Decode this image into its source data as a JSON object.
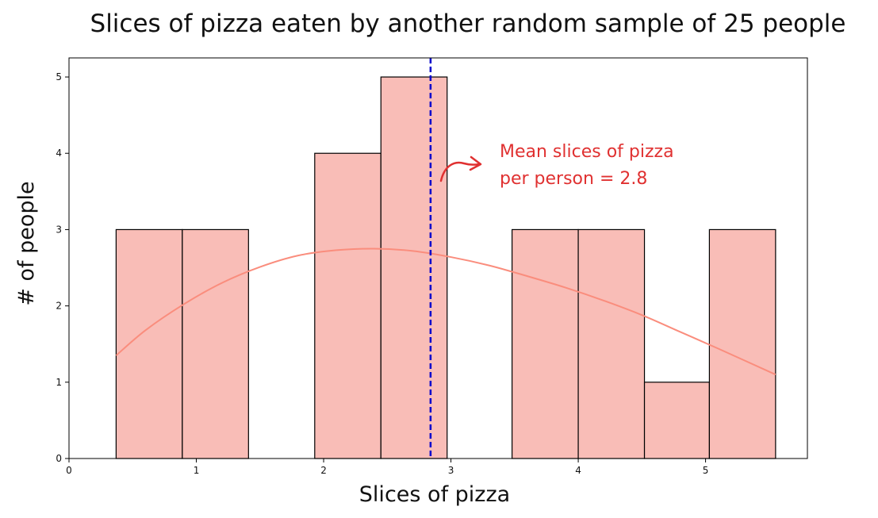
{
  "chart_data": {
    "type": "bar",
    "title": "Slices of pizza eaten by another random sample of 25 people",
    "xlabel": "Slices of pizza",
    "ylabel": "# of people",
    "xlim": [
      0,
      5.8
    ],
    "ylim": [
      0,
      5.25
    ],
    "x_ticks": [
      0,
      1,
      2,
      3,
      4,
      5
    ],
    "y_ticks": [
      0,
      1,
      2,
      3,
      4,
      5
    ],
    "bins": [
      {
        "x0": 0.37,
        "x1": 0.89,
        "count": 3
      },
      {
        "x0": 0.89,
        "x1": 1.41,
        "count": 3
      },
      {
        "x0": 1.41,
        "x1": 1.93,
        "count": 0
      },
      {
        "x0": 1.93,
        "x1": 2.45,
        "count": 4
      },
      {
        "x0": 2.45,
        "x1": 2.97,
        "count": 5
      },
      {
        "x0": 2.97,
        "x1": 3.48,
        "count": 0
      },
      {
        "x0": 3.48,
        "x1": 4.0,
        "count": 3
      },
      {
        "x0": 4.0,
        "x1": 4.52,
        "count": 3
      },
      {
        "x0": 4.52,
        "x1": 5.03,
        "count": 1
      },
      {
        "x0": 5.03,
        "x1": 5.55,
        "count": 3
      }
    ],
    "kde_curve": {
      "x": [
        0.37,
        0.6,
        0.9,
        1.2,
        1.5,
        1.8,
        2.1,
        2.4,
        2.7,
        3.0,
        3.3,
        3.6,
        3.9,
        4.2,
        4.5,
        4.8,
        5.1,
        5.55
      ],
      "y": [
        1.35,
        1.68,
        2.02,
        2.3,
        2.51,
        2.66,
        2.73,
        2.75,
        2.72,
        2.64,
        2.53,
        2.39,
        2.24,
        2.07,
        1.88,
        1.66,
        1.44,
        1.1
      ]
    },
    "mean_line": {
      "x": 2.84,
      "color": "#0000cc"
    },
    "annotation": {
      "line1": "Mean slices of pizza",
      "line2": "per person = 2.8"
    },
    "colors": {
      "bar_fill": "#f9bdb7",
      "bar_edge": "#000000",
      "kde": "#fa8d7d",
      "annotation": "#e03131"
    },
    "grid": false
  }
}
